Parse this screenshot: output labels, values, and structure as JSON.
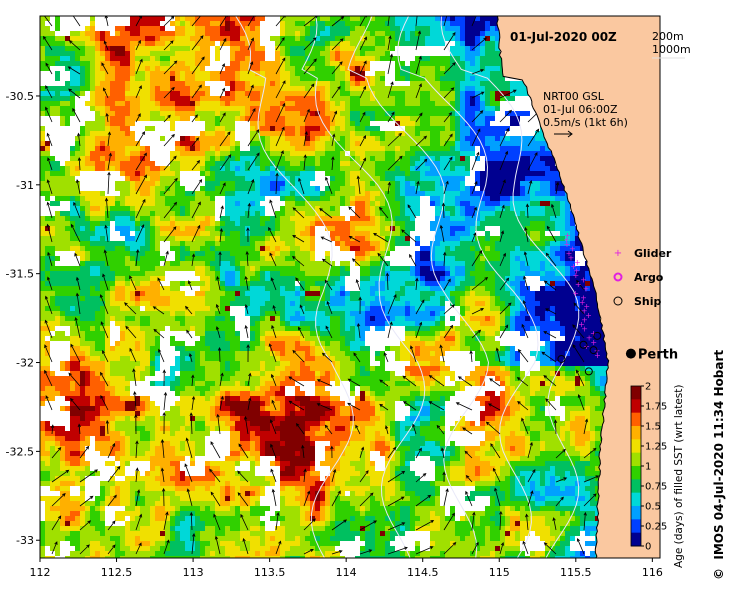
{
  "map": {
    "title": "01-Jul-2020 00Z",
    "depth_legend": [
      "200m",
      "1000m"
    ],
    "current_legend": [
      "NRT00 GSL",
      "01-Jul 06:00Z",
      "0.5m/s (1kt 6h)"
    ],
    "platform_legend": [
      {
        "label": "Glider",
        "color": "#e020e0",
        "symbol": "glider-marker-icon"
      },
      {
        "label": "Argo",
        "color": "#e020e0",
        "symbol": "argo-marker-icon"
      },
      {
        "label": "Ship",
        "color": "#000000",
        "symbol": "ship-marker-icon"
      }
    ],
    "city": {
      "name": "Perth",
      "lon": 115.86,
      "lat": -31.95
    },
    "credit": "IMOS 04-Jul-2020 11:34 Hobart",
    "copyright": "©",
    "x_ticks": [
      {
        "value": 112,
        "label": "112"
      },
      {
        "value": 112.5,
        "label": "112.5"
      },
      {
        "value": 113,
        "label": "113"
      },
      {
        "value": 113.5,
        "label": "113.5"
      },
      {
        "value": 114,
        "label": "114"
      },
      {
        "value": 114.5,
        "label": "114.5"
      },
      {
        "value": 115,
        "label": "115"
      },
      {
        "value": 115.5,
        "label": "115.5"
      },
      {
        "value": 116,
        "label": "116"
      }
    ],
    "y_ticks": [
      {
        "value": -30.5,
        "label": "-30.5"
      },
      {
        "value": -31,
        "label": "-31"
      },
      {
        "value": -31.5,
        "label": "-31.5"
      },
      {
        "value": -32,
        "label": "-32"
      },
      {
        "value": -32.5,
        "label": "-32.5"
      },
      {
        "value": -33,
        "label": "-33"
      }
    ],
    "lon_range": [
      112,
      116.05
    ],
    "lat_range": [
      -33.1,
      -30.05
    ],
    "colorbar": {
      "title": "Age (days) of filled SST (wrt latest)",
      "min": 0,
      "max": 2,
      "ticks": [
        "0",
        "0.25",
        "0.5",
        "0.75",
        "1",
        "1.25",
        "1.5",
        "1.75",
        "2"
      ],
      "colors": [
        "#000090",
        "#0040ff",
        "#00a0ff",
        "#00d8d8",
        "#00c060",
        "#30d000",
        "#a0e000",
        "#f0e000",
        "#ffb000",
        "#ff6000",
        "#c00000",
        "#800000"
      ]
    },
    "land_color": "#fac8a0",
    "no_data_color": "#ffffff"
  }
}
